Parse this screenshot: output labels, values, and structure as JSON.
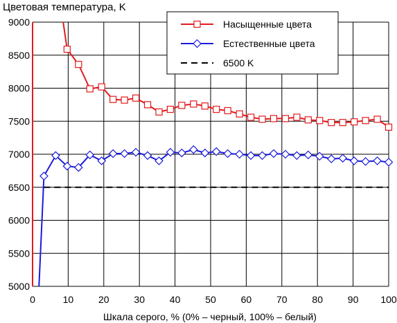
{
  "chart_data": {
    "type": "line",
    "title": "Цветовая температура, K",
    "xlabel": "Шкала серого, % (0% – черный, 100% – белый)",
    "ylabel": "",
    "xlim": [
      0,
      100
    ],
    "ylim": [
      5000,
      9000
    ],
    "x_ticks": [
      0,
      10,
      20,
      30,
      40,
      50,
      60,
      70,
      80,
      90,
      100
    ],
    "y_ticks": [
      5000,
      5500,
      6000,
      6500,
      7000,
      7500,
      8000,
      8500,
      9000
    ],
    "grid": true,
    "legend_position": "top-right",
    "x": [
      3.2,
      6.5,
      9.7,
      12.9,
      16.1,
      19.4,
      22.6,
      25.8,
      29,
      32.3,
      35.5,
      38.7,
      41.9,
      45.2,
      48.4,
      51.6,
      54.8,
      58.1,
      61.3,
      64.5,
      67.7,
      71,
      74.2,
      77.4,
      80.6,
      83.9,
      87.1,
      90.3,
      93.5,
      96.8,
      100
    ],
    "series": [
      {
        "name": "Насыщенные цвета",
        "color": "#e31a1c",
        "marker": "square",
        "values": [
          null,
          null,
          8590,
          8360,
          7990,
          8020,
          7830,
          7820,
          7850,
          7750,
          7640,
          7680,
          7740,
          7760,
          7730,
          7680,
          7660,
          7610,
          7560,
          7530,
          7540,
          7540,
          7560,
          7520,
          7510,
          7480,
          7480,
          7490,
          7510,
          7530,
          7410
        ],
        "leading_segment": [
          [
            8.6,
            9000
          ],
          [
            9.7,
            8590
          ]
        ]
      },
      {
        "name": "Естественные цвета",
        "color": "#1a1adc",
        "marker": "diamond",
        "values": [
          6670,
          6980,
          6820,
          6800,
          6990,
          6900,
          7010,
          7010,
          7030,
          6980,
          6900,
          7030,
          7020,
          7070,
          7020,
          7040,
          7010,
          7000,
          6980,
          6980,
          7010,
          7000,
          6980,
          6990,
          6970,
          6930,
          6940,
          6900,
          6890,
          6900,
          6880
        ],
        "leading_segment": [
          [
            1.8,
            5000
          ],
          [
            3.2,
            6670
          ]
        ]
      },
      {
        "name": "6500 K",
        "color": "#000000",
        "marker": "none",
        "dashed": true,
        "constant": 6500,
        "range": [
          3.2,
          100
        ]
      }
    ],
    "left_axis_color": "#e31a1c"
  }
}
